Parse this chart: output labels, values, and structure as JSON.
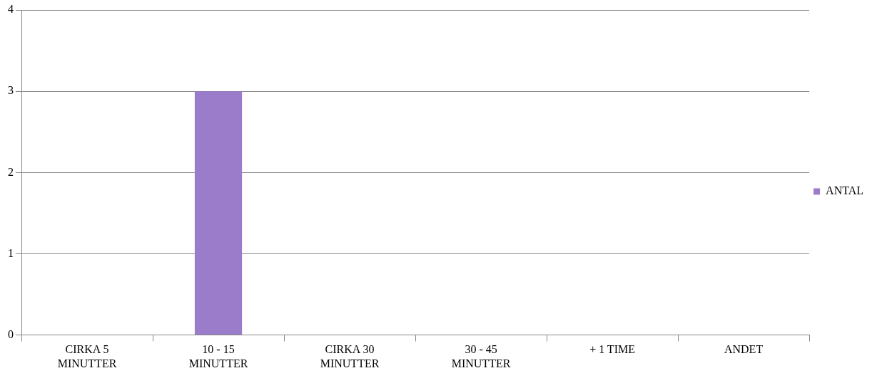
{
  "chart_data": {
    "type": "bar",
    "categories": [
      "CIRKA 5 MINUTTER",
      "10 - 15 MINUTTER",
      "CIRKA 30 MINUTTER",
      "30 - 45 MINUTTER",
      "+ 1 TIME",
      "ANDET"
    ],
    "series": [
      {
        "name": "ANTAL",
        "color": "#9a7ccb",
        "values": [
          0,
          3,
          0,
          0,
          0,
          0
        ]
      }
    ],
    "ylim": [
      0,
      4
    ],
    "yticks": [
      0,
      1,
      2,
      3,
      4
    ],
    "grid": "y",
    "legend": "right"
  }
}
